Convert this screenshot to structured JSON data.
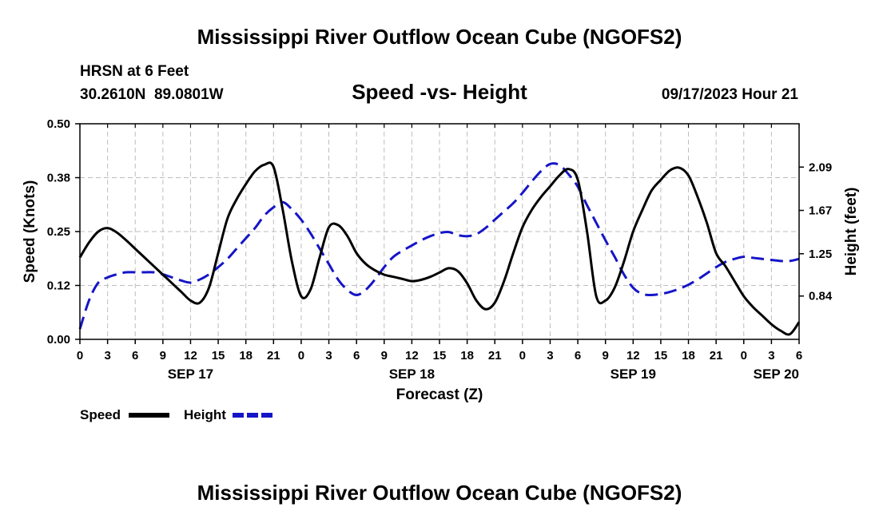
{
  "chart_data": {
    "type": "line",
    "title": "Mississippi River Outflow Ocean Cube (NGOFS2)",
    "footer_title": "Mississippi River Outflow Ocean Cube (NGOFS2)",
    "subtitle": "Speed -vs- Height",
    "station": "HRSN at 6 Feet",
    "coordinates": "30.2610N  89.0801W",
    "datetime": "09/17/2023 Hour 21",
    "xlabel": "Forecast (Z)",
    "ylabel_left": "Speed (Knots)",
    "ylabel_right": "Height (feet)",
    "x_unit": "hours since 2023-09-17 00Z",
    "xlim": [
      0,
      78
    ],
    "ylim_left": [
      0,
      0.5
    ],
    "ylim_right": [
      0.42,
      2.51
    ],
    "yticks_left": [
      {
        "value": 0.0,
        "label": "0.00"
      },
      {
        "value": 0.125,
        "label": "0.12"
      },
      {
        "value": 0.25,
        "label": "0.25"
      },
      {
        "value": 0.375,
        "label": "0.38"
      },
      {
        "value": 0.5,
        "label": "0.50"
      }
    ],
    "yticks_right": [
      {
        "value": 0.84,
        "label": "0.84"
      },
      {
        "value": 1.25,
        "label": "1.25"
      },
      {
        "value": 1.67,
        "label": "1.67"
      },
      {
        "value": 2.09,
        "label": "2.09"
      }
    ],
    "xticks": [
      {
        "x": 0,
        "label": "0"
      },
      {
        "x": 3,
        "label": "3"
      },
      {
        "x": 6,
        "label": "6"
      },
      {
        "x": 9,
        "label": "9"
      },
      {
        "x": 12,
        "label": "12"
      },
      {
        "x": 15,
        "label": "15"
      },
      {
        "x": 18,
        "label": "18"
      },
      {
        "x": 21,
        "label": "21"
      },
      {
        "x": 24,
        "label": "0"
      },
      {
        "x": 27,
        "label": "3"
      },
      {
        "x": 30,
        "label": "6"
      },
      {
        "x": 33,
        "label": "9"
      },
      {
        "x": 36,
        "label": "12"
      },
      {
        "x": 39,
        "label": "15"
      },
      {
        "x": 42,
        "label": "18"
      },
      {
        "x": 45,
        "label": "21"
      },
      {
        "x": 48,
        "label": "0"
      },
      {
        "x": 51,
        "label": "3"
      },
      {
        "x": 54,
        "label": "6"
      },
      {
        "x": 57,
        "label": "9"
      },
      {
        "x": 60,
        "label": "12"
      },
      {
        "x": 63,
        "label": "15"
      },
      {
        "x": 66,
        "label": "18"
      },
      {
        "x": 69,
        "label": "21"
      },
      {
        "x": 72,
        "label": "0"
      },
      {
        "x": 75,
        "label": "3"
      },
      {
        "x": 78,
        "label": "6"
      }
    ],
    "day_labels": [
      {
        "x": 12,
        "label": "SEP 17"
      },
      {
        "x": 36,
        "label": "SEP 18"
      },
      {
        "x": 60,
        "label": "SEP 19"
      },
      {
        "x": 78,
        "label": "SEP 20"
      }
    ],
    "grid": true,
    "legend": "bottom-left",
    "series": [
      {
        "name": "Speed",
        "axis": "left",
        "color": "#000000",
        "dash": "solid",
        "x": [
          0,
          1,
          2,
          3,
          4,
          5,
          6,
          7,
          8,
          9,
          10,
          11,
          12,
          13,
          14,
          15,
          16,
          17,
          18,
          19,
          20,
          21,
          22,
          23,
          24,
          25,
          26,
          27,
          28,
          29,
          30,
          31,
          32,
          33,
          34,
          35,
          36,
          37,
          38,
          39,
          40,
          41,
          42,
          43,
          44,
          45,
          46,
          47,
          48,
          49,
          50,
          51,
          52,
          53,
          54,
          55,
          56,
          57,
          58,
          59,
          60,
          61,
          62,
          63,
          64,
          65,
          66,
          67,
          68,
          69,
          70,
          71,
          72,
          73,
          74,
          75,
          76,
          77,
          78
        ],
        "values": [
          0.19,
          0.225,
          0.25,
          0.258,
          0.248,
          0.23,
          0.21,
          0.19,
          0.17,
          0.15,
          0.13,
          0.11,
          0.09,
          0.085,
          0.12,
          0.2,
          0.28,
          0.325,
          0.36,
          0.39,
          0.405,
          0.4,
          0.3,
          0.18,
          0.1,
          0.115,
          0.19,
          0.26,
          0.265,
          0.24,
          0.2,
          0.175,
          0.16,
          0.15,
          0.145,
          0.14,
          0.135,
          0.138,
          0.145,
          0.155,
          0.165,
          0.158,
          0.13,
          0.09,
          0.07,
          0.085,
          0.135,
          0.2,
          0.26,
          0.3,
          0.33,
          0.355,
          0.38,
          0.395,
          0.37,
          0.25,
          0.1,
          0.09,
          0.12,
          0.18,
          0.25,
          0.3,
          0.345,
          0.37,
          0.392,
          0.398,
          0.38,
          0.33,
          0.27,
          0.2,
          0.17,
          0.135,
          0.1,
          0.075,
          0.055,
          0.035,
          0.02,
          0.012,
          0.04
        ]
      },
      {
        "name": "Height",
        "axis": "right",
        "color": "#1515c8",
        "dash": "dashed",
        "x": [
          0,
          1,
          2,
          3,
          4,
          5,
          6,
          7,
          8,
          9,
          10,
          11,
          12,
          13,
          14,
          15,
          16,
          17,
          18,
          19,
          20,
          21,
          22,
          23,
          24,
          25,
          26,
          27,
          28,
          29,
          30,
          31,
          32,
          33,
          34,
          35,
          36,
          37,
          38,
          39,
          40,
          41,
          42,
          43,
          44,
          45,
          46,
          47,
          48,
          49,
          50,
          51,
          52,
          53,
          54,
          55,
          56,
          57,
          58,
          59,
          60,
          61,
          62,
          63,
          64,
          65,
          66,
          67,
          68,
          69,
          70,
          71,
          72,
          73,
          74,
          75,
          76,
          77,
          78
        ],
        "values": [
          0.52,
          0.8,
          0.97,
          1.02,
          1.05,
          1.07,
          1.07,
          1.07,
          1.07,
          1.05,
          1.02,
          0.99,
          0.97,
          1.0,
          1.05,
          1.12,
          1.2,
          1.3,
          1.4,
          1.5,
          1.62,
          1.7,
          1.75,
          1.68,
          1.58,
          1.45,
          1.3,
          1.15,
          1.0,
          0.9,
          0.85,
          0.9,
          1.0,
          1.12,
          1.22,
          1.28,
          1.33,
          1.38,
          1.42,
          1.45,
          1.46,
          1.43,
          1.42,
          1.44,
          1.5,
          1.58,
          1.66,
          1.74,
          1.84,
          1.95,
          2.05,
          2.12,
          2.11,
          2.02,
          1.9,
          1.72,
          1.55,
          1.38,
          1.22,
          1.05,
          0.92,
          0.86,
          0.85,
          0.86,
          0.88,
          0.91,
          0.95,
          1.0,
          1.06,
          1.12,
          1.17,
          1.2,
          1.22,
          1.21,
          1.2,
          1.19,
          1.18,
          1.18,
          1.2
        ]
      }
    ]
  }
}
